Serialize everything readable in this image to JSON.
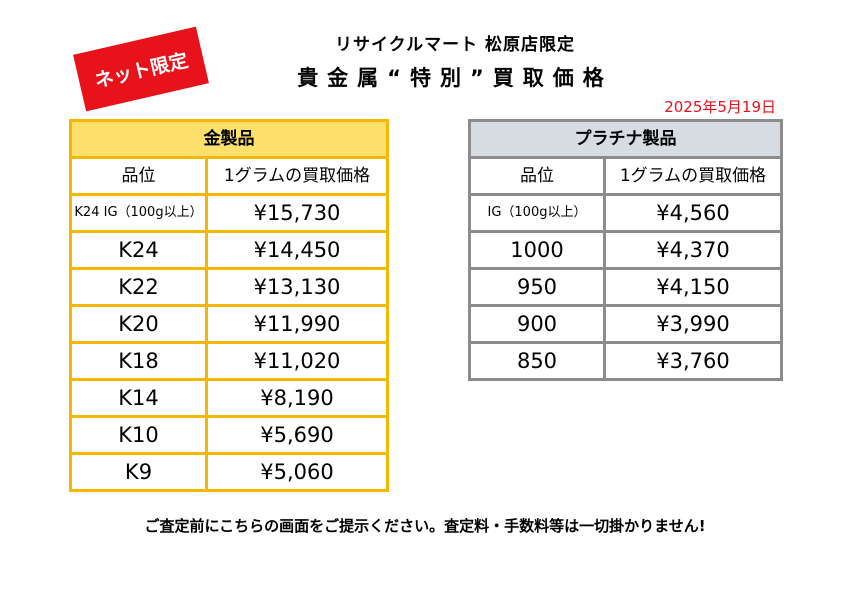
{
  "badge": "ネット限定",
  "store": "リサイクルマート 松原店限定",
  "title": "貴金属“特別”買取価格",
  "date": "2025年5月19日",
  "gold": {
    "header": "金製品",
    "col1": "品位",
    "col2": "1グラムの買取価格",
    "rows": [
      {
        "grade": "K24 IG（100g以上）",
        "price": "¥15,730"
      },
      {
        "grade": "K24",
        "price": "¥14,450"
      },
      {
        "grade": "K22",
        "price": "¥13,130"
      },
      {
        "grade": "K20",
        "price": "¥11,990"
      },
      {
        "grade": "K18",
        "price": "¥11,020"
      },
      {
        "grade": "K14",
        "price": "¥8,190"
      },
      {
        "grade": "K10",
        "price": "¥5,690"
      },
      {
        "grade": "K9",
        "price": "¥5,060"
      }
    ]
  },
  "platinum": {
    "header": "プラチナ製品",
    "col1": "品位",
    "col2": "1グラムの買取価格",
    "rows": [
      {
        "grade": "IG（100g以上）",
        "price": "¥4,560"
      },
      {
        "grade": "1000",
        "price": "¥4,370"
      },
      {
        "grade": "950",
        "price": "¥4,150"
      },
      {
        "grade": "900",
        "price": "¥3,990"
      },
      {
        "grade": "850",
        "price": "¥3,760"
      }
    ]
  },
  "footer": "ご査定前にこちらの画面をご提示ください。査定料・手数料等は一切掛かりません!"
}
